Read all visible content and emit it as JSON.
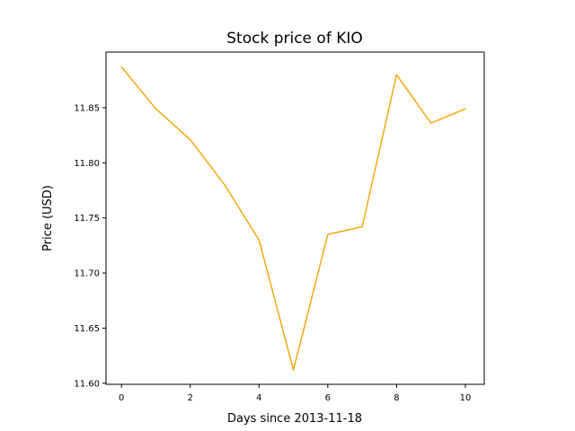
{
  "chart_data": {
    "type": "line",
    "title": "Stock price of KIO",
    "xlabel": "Days since 2013-11-18",
    "ylabel": "Price (USD)",
    "x": [
      0,
      1,
      2,
      3,
      4,
      5,
      6,
      7,
      8,
      9,
      10
    ],
    "series": [
      {
        "values": [
          11.887,
          11.849,
          11.821,
          11.78,
          11.73,
          11.612,
          11.735,
          11.742,
          11.88,
          11.836,
          11.849
        ],
        "color": "#f5a300"
      }
    ],
    "xlim": [
      -0.45,
      10.55
    ],
    "ylim": [
      11.599,
      11.9005
    ],
    "xticks": [
      0,
      2,
      4,
      6,
      8,
      10
    ],
    "xtick_labels": [
      "0",
      "2",
      "4",
      "6",
      "8",
      "10"
    ],
    "yticks": [
      11.6,
      11.65,
      11.7,
      11.75,
      11.8,
      11.85
    ],
    "ytick_labels": [
      "11.60",
      "11.65",
      "11.70",
      "11.75",
      "11.80",
      "11.85"
    ],
    "grid": false,
    "legend": "none"
  }
}
